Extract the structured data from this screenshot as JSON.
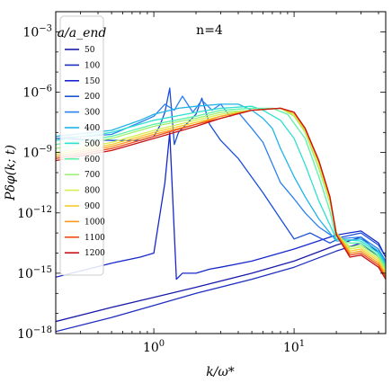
{
  "chart_data": {
    "type": "line",
    "annotation": "n=4",
    "xlabel": "k/ω*",
    "ylabel": "Pδφ(k; t)",
    "xscale": "log",
    "yscale": "log",
    "xlim": [
      0.2,
      45
    ],
    "ylim": [
      1e-18,
      0.01
    ],
    "x_ticks": [
      {
        "value": 1,
        "label": "10^0"
      },
      {
        "value": 10,
        "label": "10^1"
      }
    ],
    "y_ticks": [
      {
        "value": 0.001,
        "label": "10^-3"
      },
      {
        "value": 1e-06,
        "label": "10^-6"
      },
      {
        "value": 1e-09,
        "label": "10^-9"
      },
      {
        "value": 1e-12,
        "label": "10^-12"
      },
      {
        "value": 1e-15,
        "label": "10^-15"
      },
      {
        "value": 1e-18,
        "label": "10^-18"
      }
    ],
    "legend": {
      "title": "a/a_end",
      "position": "upper-left",
      "entries": [
        "50",
        "100",
        "150",
        "200",
        "300",
        "400",
        "500",
        "600",
        "700",
        "800",
        "900",
        "1000",
        "1100",
        "1200"
      ]
    },
    "series": [
      {
        "name": "50",
        "color": "#1a1aaa",
        "points": [
          [
            0.2,
            -17.4
          ],
          [
            0.5,
            -16.7
          ],
          [
            1.0,
            -16.2
          ],
          [
            2.0,
            -15.7
          ],
          [
            5.0,
            -15.0
          ],
          [
            10,
            -14.4
          ],
          [
            20,
            -13.6
          ],
          [
            30,
            -13.2
          ],
          [
            40,
            -14.0
          ],
          [
            45,
            -14.8
          ]
        ]
      },
      {
        "name": "100",
        "color": "#1f2fbf",
        "points": [
          [
            0.2,
            -17.9
          ],
          [
            0.5,
            -17.2
          ],
          [
            1.0,
            -16.6
          ],
          [
            2.0,
            -16.0
          ],
          [
            5.0,
            -15.3
          ],
          [
            10,
            -14.7
          ],
          [
            20,
            -13.9
          ],
          [
            30,
            -13.5
          ],
          [
            40,
            -14.2
          ],
          [
            45,
            -14.9
          ]
        ]
      },
      {
        "name": "150",
        "color": "#1628cc",
        "points": [
          [
            0.2,
            -15.2
          ],
          [
            0.5,
            -14.5
          ],
          [
            0.8,
            -14.2
          ],
          [
            1.0,
            -14.0
          ],
          [
            1.2,
            -10.5
          ],
          [
            1.3,
            -8.0
          ],
          [
            1.45,
            -15.3
          ],
          [
            1.6,
            -15.0
          ],
          [
            2.0,
            -15.0
          ],
          [
            2.5,
            -14.8
          ],
          [
            3.0,
            -14.7
          ],
          [
            5.0,
            -14.4
          ],
          [
            10,
            -13.8
          ],
          [
            20,
            -13.1
          ],
          [
            30,
            -12.9
          ],
          [
            40,
            -13.5
          ],
          [
            45,
            -14.2
          ]
        ]
      },
      {
        "name": "200",
        "color": "#1b4fd9",
        "points": [
          [
            0.2,
            -8.3
          ],
          [
            0.5,
            -8.4
          ],
          [
            0.8,
            -8.4
          ],
          [
            1.0,
            -8.2
          ],
          [
            1.1,
            -7.7
          ],
          [
            1.2,
            -7.0
          ],
          [
            1.3,
            -5.8
          ],
          [
            1.4,
            -8.6
          ],
          [
            1.5,
            -8.0
          ],
          [
            1.7,
            -7.6
          ],
          [
            2.0,
            -7.1
          ],
          [
            2.2,
            -6.3
          ],
          [
            2.5,
            -7.6
          ],
          [
            3.0,
            -8.4
          ],
          [
            4.0,
            -9.3
          ],
          [
            6.0,
            -11.0
          ],
          [
            8.0,
            -12.3
          ],
          [
            10,
            -13.3
          ],
          [
            13,
            -13.0
          ],
          [
            18,
            -13.5
          ],
          [
            22,
            -13.2
          ],
          [
            30,
            -13.0
          ],
          [
            40,
            -13.6
          ],
          [
            45,
            -14.2
          ]
        ]
      },
      {
        "name": "300",
        "color": "#2c7ff0",
        "points": [
          [
            0.2,
            -8.3
          ],
          [
            0.5,
            -8.1
          ],
          [
            0.8,
            -7.5
          ],
          [
            1.0,
            -7.2
          ],
          [
            1.2,
            -6.6
          ],
          [
            1.4,
            -6.9
          ],
          [
            1.6,
            -6.2
          ],
          [
            1.9,
            -7.0
          ],
          [
            2.2,
            -6.4
          ],
          [
            2.6,
            -6.9
          ],
          [
            3.0,
            -6.6
          ],
          [
            3.5,
            -7.2
          ],
          [
            4.0,
            -7.0
          ],
          [
            5.0,
            -7.8
          ],
          [
            6.0,
            -8.5
          ],
          [
            8.0,
            -10.5
          ],
          [
            10,
            -11.3
          ],
          [
            12,
            -12.0
          ],
          [
            15,
            -12.7
          ],
          [
            20,
            -13.3
          ],
          [
            30,
            -13.2
          ],
          [
            40,
            -13.8
          ],
          [
            45,
            -14.4
          ]
        ]
      },
      {
        "name": "400",
        "color": "#21b4e8",
        "points": [
          [
            0.2,
            -8.2
          ],
          [
            0.5,
            -7.9
          ],
          [
            0.8,
            -7.4
          ],
          [
            1.0,
            -7.1
          ],
          [
            1.5,
            -6.8
          ],
          [
            2.0,
            -6.7
          ],
          [
            3.0,
            -6.6
          ],
          [
            4.0,
            -6.6
          ],
          [
            5.0,
            -6.9
          ],
          [
            6.0,
            -7.3
          ],
          [
            7.0,
            -7.8
          ],
          [
            8.0,
            -8.8
          ],
          [
            10,
            -10.2
          ],
          [
            12,
            -11.2
          ],
          [
            15,
            -12.3
          ],
          [
            20,
            -13.4
          ],
          [
            30,
            -13.3
          ],
          [
            40,
            -13.9
          ],
          [
            45,
            -14.5
          ]
        ]
      },
      {
        "name": "500",
        "color": "#2fe0d0",
        "points": [
          [
            0.2,
            -8.4
          ],
          [
            0.5,
            -8.0
          ],
          [
            1.0,
            -7.4
          ],
          [
            2.0,
            -7.0
          ],
          [
            3.0,
            -6.8
          ],
          [
            5.0,
            -6.7
          ],
          [
            6.0,
            -6.9
          ],
          [
            8.0,
            -7.4
          ],
          [
            10,
            -8.3
          ],
          [
            12,
            -9.6
          ],
          [
            15,
            -11.4
          ],
          [
            20,
            -13.3
          ],
          [
            30,
            -13.4
          ],
          [
            40,
            -14.0
          ],
          [
            45,
            -14.6
          ]
        ]
      },
      {
        "name": "600",
        "color": "#5cf2a8",
        "points": [
          [
            0.2,
            -8.6
          ],
          [
            0.5,
            -8.2
          ],
          [
            1.0,
            -7.6
          ],
          [
            2.0,
            -7.2
          ],
          [
            3.0,
            -6.9
          ],
          [
            5.0,
            -6.8
          ],
          [
            7.0,
            -6.8
          ],
          [
            9.0,
            -7.1
          ],
          [
            12,
            -8.3
          ],
          [
            15,
            -10.2
          ],
          [
            18,
            -11.9
          ],
          [
            20,
            -13.3
          ],
          [
            25,
            -13.5
          ],
          [
            30,
            -13.5
          ],
          [
            40,
            -14.1
          ],
          [
            45,
            -14.7
          ]
        ]
      },
      {
        "name": "700",
        "color": "#9ef270",
        "points": [
          [
            0.2,
            -8.8
          ],
          [
            0.5,
            -8.3
          ],
          [
            1.0,
            -7.7
          ],
          [
            2.0,
            -7.3
          ],
          [
            3.0,
            -7.0
          ],
          [
            5.0,
            -6.9
          ],
          [
            8.0,
            -6.8
          ],
          [
            10,
            -7.2
          ],
          [
            12,
            -8.0
          ],
          [
            15,
            -9.8
          ],
          [
            18,
            -11.5
          ],
          [
            20,
            -13.0
          ],
          [
            25,
            -13.7
          ],
          [
            30,
            -13.6
          ],
          [
            40,
            -14.2
          ],
          [
            45,
            -14.8
          ]
        ]
      },
      {
        "name": "800",
        "color": "#d6ee52",
        "points": [
          [
            0.2,
            -9.0
          ],
          [
            0.5,
            -8.5
          ],
          [
            1.0,
            -7.9
          ],
          [
            2.0,
            -7.4
          ],
          [
            3.0,
            -7.1
          ],
          [
            5.0,
            -6.9
          ],
          [
            8.0,
            -6.8
          ],
          [
            10,
            -7.1
          ],
          [
            12,
            -7.9
          ],
          [
            15,
            -9.6
          ],
          [
            18,
            -11.4
          ],
          [
            20,
            -13.0
          ],
          [
            25,
            -13.8
          ],
          [
            30,
            -13.7
          ],
          [
            40,
            -14.3
          ],
          [
            45,
            -14.9
          ]
        ]
      },
      {
        "name": "900",
        "color": "#f5cc2a",
        "points": [
          [
            0.2,
            -9.1
          ],
          [
            0.5,
            -8.6
          ],
          [
            1.0,
            -8.0
          ],
          [
            2.0,
            -7.5
          ],
          [
            3.0,
            -7.2
          ],
          [
            5.0,
            -6.9
          ],
          [
            8.0,
            -6.8
          ],
          [
            10,
            -7.1
          ],
          [
            12,
            -7.9
          ],
          [
            15,
            -9.5
          ],
          [
            18,
            -11.3
          ],
          [
            20,
            -13.0
          ],
          [
            25,
            -13.9
          ],
          [
            30,
            -13.8
          ],
          [
            40,
            -14.4
          ],
          [
            45,
            -15.0
          ]
        ]
      },
      {
        "name": "1000",
        "color": "#f99a1c",
        "points": [
          [
            0.2,
            -9.2
          ],
          [
            0.5,
            -8.7
          ],
          [
            1.0,
            -8.1
          ],
          [
            2.0,
            -7.6
          ],
          [
            3.0,
            -7.2
          ],
          [
            5.0,
            -6.9
          ],
          [
            8.0,
            -6.8
          ],
          [
            10,
            -7.0
          ],
          [
            12,
            -7.8
          ],
          [
            15,
            -9.4
          ],
          [
            18,
            -11.2
          ],
          [
            20,
            -13.0
          ],
          [
            25,
            -14.0
          ],
          [
            30,
            -13.9
          ],
          [
            40,
            -14.5
          ],
          [
            45,
            -15.1
          ]
        ]
      },
      {
        "name": "1100",
        "color": "#ef4a16",
        "points": [
          [
            0.2,
            -9.3
          ],
          [
            0.5,
            -8.8
          ],
          [
            1.0,
            -8.2
          ],
          [
            2.0,
            -7.6
          ],
          [
            3.0,
            -7.3
          ],
          [
            5.0,
            -6.9
          ],
          [
            8.0,
            -6.8
          ],
          [
            10,
            -7.0
          ],
          [
            12,
            -7.8
          ],
          [
            15,
            -9.4
          ],
          [
            18,
            -11.2
          ],
          [
            20,
            -13.1
          ],
          [
            25,
            -14.1
          ],
          [
            30,
            -14.0
          ],
          [
            40,
            -14.6
          ],
          [
            45,
            -15.2
          ]
        ]
      },
      {
        "name": "1200",
        "color": "#c81414",
        "points": [
          [
            0.2,
            -9.4
          ],
          [
            0.5,
            -8.9
          ],
          [
            1.0,
            -8.3
          ],
          [
            2.0,
            -7.7
          ],
          [
            3.0,
            -7.3
          ],
          [
            5.0,
            -6.9
          ],
          [
            8.0,
            -6.8
          ],
          [
            10,
            -7.0
          ],
          [
            12,
            -7.8
          ],
          [
            15,
            -9.4
          ],
          [
            18,
            -11.2
          ],
          [
            20,
            -13.1
          ],
          [
            25,
            -14.2
          ],
          [
            30,
            -14.1
          ],
          [
            40,
            -14.7
          ],
          [
            45,
            -15.3
          ]
        ]
      }
    ]
  }
}
